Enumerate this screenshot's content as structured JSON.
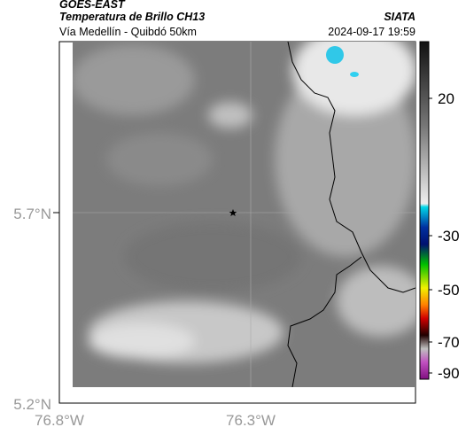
{
  "header": {
    "satellite": "GOES-EAST",
    "product": "Temperatura de Brillo CH13",
    "source": "SIATA",
    "route": "Vía Medellín - Quibdó 50km",
    "timestamp": "2024-09-17 19:59"
  },
  "map": {
    "lat_labels": [
      "5.7°N",
      "5.2°N"
    ],
    "lon_labels": [
      "76.8°W",
      "76.3°W"
    ]
  },
  "colorbar": {
    "ticks": [
      20,
      -30,
      -50,
      -70,
      -90
    ]
  }
}
